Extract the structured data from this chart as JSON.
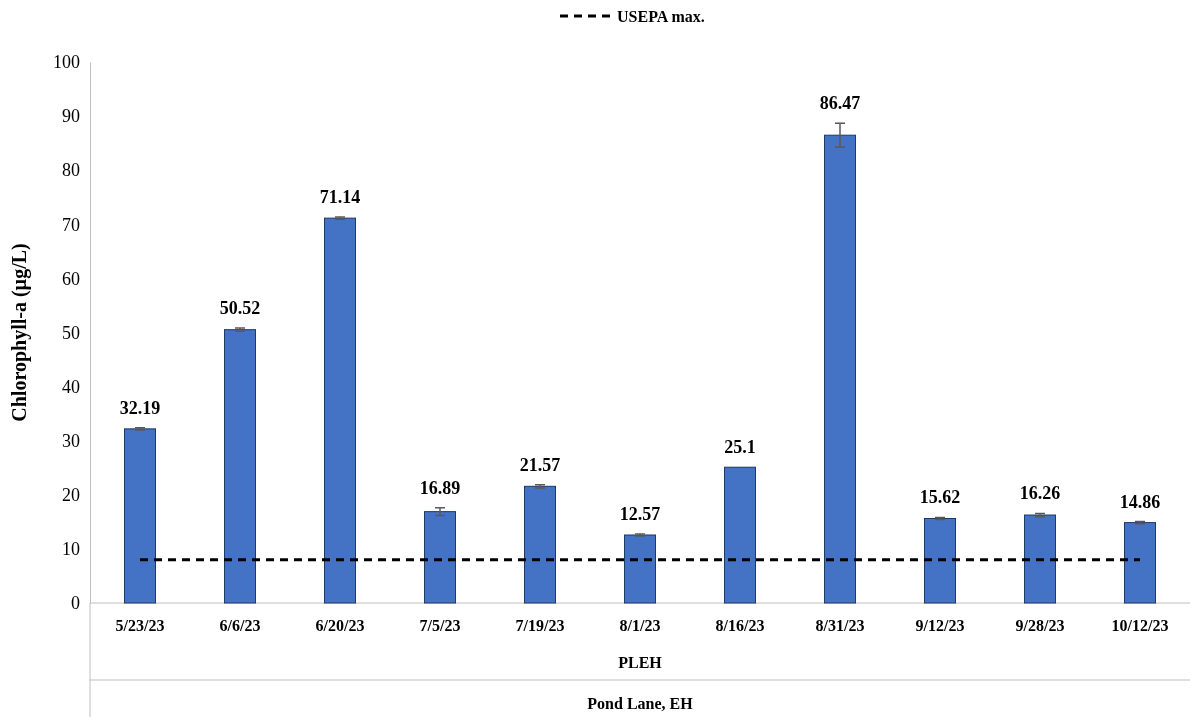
{
  "chart_data": {
    "type": "bar",
    "ylabel": "Chlorophyll-a (µg/L)",
    "xlabel": "PLEH",
    "annotations": [
      "Pond Lane, EH"
    ],
    "categories": [
      "5/23/23",
      "6/6/23",
      "6/20/23",
      "7/5/23",
      "7/19/23",
      "8/1/23",
      "8/16/23",
      "8/31/23",
      "9/12/23",
      "9/28/23",
      "10/12/23"
    ],
    "values": [
      32.19,
      50.52,
      71.14,
      16.89,
      21.57,
      12.57,
      25.1,
      86.47,
      15.62,
      16.26,
      14.86
    ],
    "errors": [
      0.2,
      0.3,
      0.2,
      0.7,
      0.3,
      0.2,
      null,
      2.2,
      0.2,
      0.3,
      0.2
    ],
    "color": "#4472c4",
    "data_labels": true,
    "ylim": [
      0,
      100
    ],
    "yticks": [
      0,
      10,
      20,
      30,
      40,
      50,
      60,
      70,
      80,
      90,
      100
    ],
    "grid": false,
    "ref_lines": [
      {
        "axis": "y",
        "value": 8,
        "label": "USEPA max.",
        "color": "#000000",
        "line_style": "dashed"
      }
    ],
    "legend": "top"
  }
}
